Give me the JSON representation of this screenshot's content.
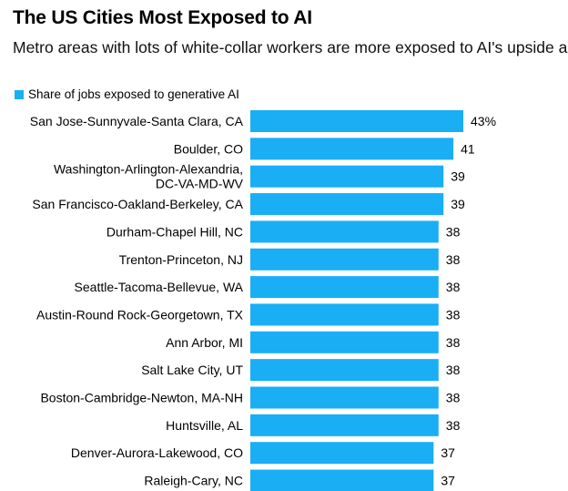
{
  "header": {
    "title": "The US Cities Most Exposed to AI",
    "subtitle": "Metro areas with lots of white-collar workers are more exposed to AI's upside and its downside."
  },
  "legend": {
    "label": "Share of jobs exposed to generative AI",
    "color": "#1aaef5"
  },
  "chart_data": {
    "type": "bar",
    "orientation": "horizontal",
    "categories": [
      "San Jose-Sunnyvale-Santa Clara, CA",
      "Boulder, CO",
      "Washington-Arlington-Alexandria, DC-VA-MD-WV",
      "San Francisco-Oakland-Berkeley, CA",
      "Durham-Chapel Hill, NC",
      "Trenton-Princeton, NJ",
      "Seattle-Tacoma-Bellevue, WA",
      "Austin-Round Rock-Georgetown, TX",
      "Ann Arbor, MI",
      "Salt Lake City, UT",
      "Boston-Cambridge-Newton, MA-NH",
      "Huntsville, AL",
      "Denver-Aurora-Lakewood, CO",
      "Raleigh-Cary, NC"
    ],
    "category_lines": [
      [
        "San Jose-Sunnyvale-Santa Clara, CA"
      ],
      [
        "Boulder, CO"
      ],
      [
        "Washington-Arlington-Alexandria,",
        "DC-VA-MD-WV"
      ],
      [
        "San Francisco-Oakland-Berkeley, CA"
      ],
      [
        "Durham-Chapel Hill, NC"
      ],
      [
        "Trenton-Princeton, NJ"
      ],
      [
        "Seattle-Tacoma-Bellevue, WA"
      ],
      [
        "Austin-Round Rock-Georgetown, TX"
      ],
      [
        "Ann Arbor, MI"
      ],
      [
        "Salt Lake City, UT"
      ],
      [
        "Boston-Cambridge-Newton, MA-NH"
      ],
      [
        "Huntsville, AL"
      ],
      [
        "Denver-Aurora-Lakewood, CO"
      ],
      [
        "Raleigh-Cary, NC"
      ]
    ],
    "values": [
      43,
      41,
      39,
      39,
      38,
      38,
      38,
      38,
      38,
      38,
      38,
      38,
      37,
      37
    ],
    "value_labels": [
      "43%",
      "41",
      "39",
      "39",
      "38",
      "38",
      "38",
      "38",
      "38",
      "38",
      "38",
      "38",
      "37",
      "37"
    ],
    "unit": "%",
    "xlim": [
      0,
      43
    ],
    "grid": false,
    "legend_position": "top-left",
    "bar_color": "#1aaef5"
  }
}
